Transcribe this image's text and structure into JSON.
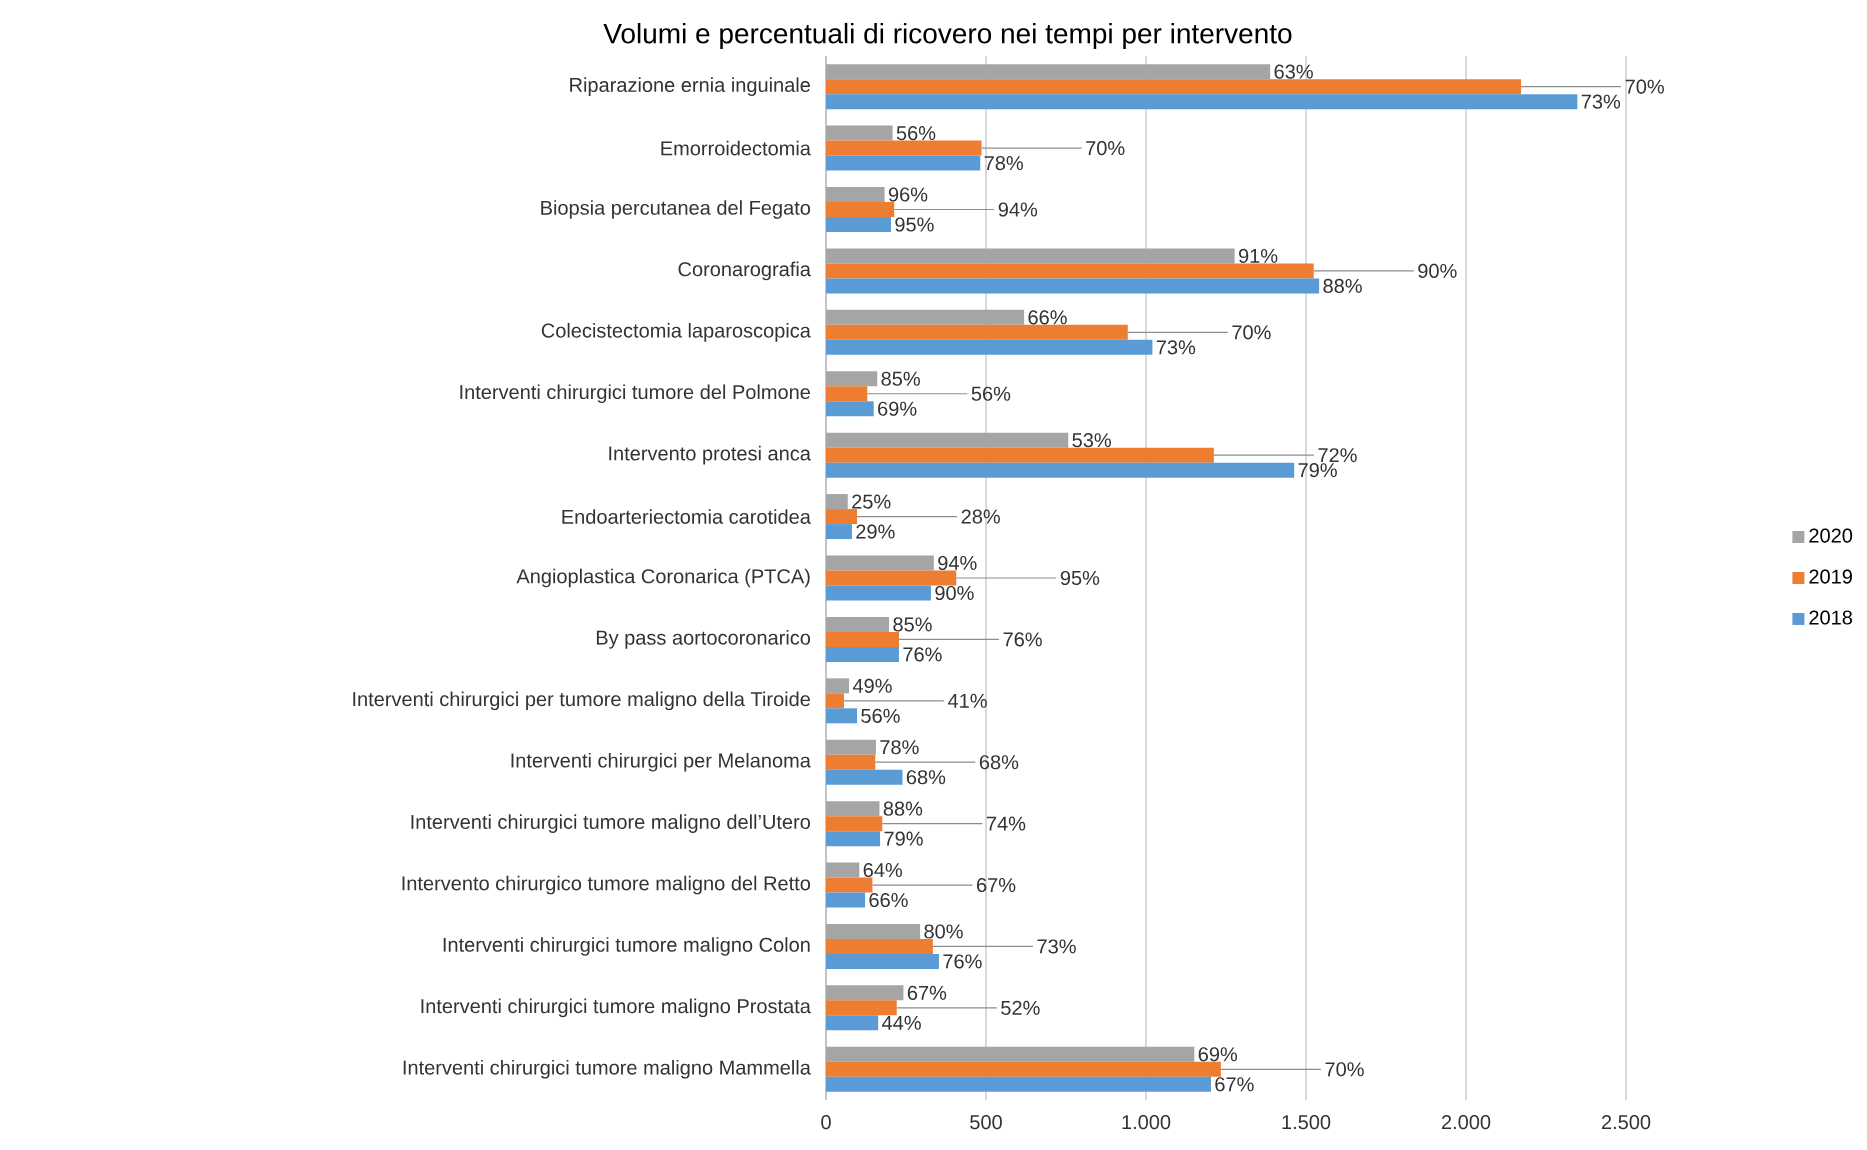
{
  "chart_data": {
    "type": "bar",
    "orientation": "horizontal",
    "title": "Volumi e percentuali di ricovero nei tempi per intervento",
    "categories": [
      "Riparazione ernia inguinale",
      "Emorroidectomia",
      "Biopsia percutanea del Fegato",
      "Coronarografia",
      "Colecistectomia laparoscopica",
      "Interventi chirurgici tumore del Polmone",
      "Intervento protesi anca",
      "Endoarteriectomia carotidea",
      "Angioplastica Coronarica (PTCA)",
      "By pass aortocoronarico",
      "Interventi chirurgici per tumore maligno della Tiroide",
      "Interventi chirurgici per Melanoma",
      "Interventi chirurgici tumore maligno dell’Utero",
      "Intervento chirurgico tumore maligno del Retto",
      "Interventi chirurgici tumore maligno Colon",
      "Interventi chirurgici tumore maligno Prostata",
      "Interventi chirurgici tumore maligno Mammella"
    ],
    "series": [
      {
        "name": "2020",
        "color": "#a5a5a5",
        "values": [
          1388,
          208,
          183,
          1277,
          619,
          160,
          757,
          68,
          337,
          197,
          72,
          156,
          167,
          104,
          294,
          242,
          1151
        ]
      },
      {
        "name": "2019",
        "color": "#ed7d31",
        "values": [
          2172,
          486,
          213,
          1524,
          943,
          129,
          1212,
          97,
          407,
          228,
          56,
          154,
          176,
          145,
          334,
          221,
          1234
        ]
      },
      {
        "name": "2018",
        "color": "#5b9bd5",
        "values": [
          2348,
          482,
          203,
          1541,
          1020,
          149,
          1463,
          81,
          328,
          228,
          97,
          239,
          169,
          122,
          353,
          163,
          1203
        ]
      }
    ],
    "annotations": [
      "63%",
      "56%",
      "96%",
      "91%",
      "66%",
      "85%",
      "53%",
      "25%",
      "94%",
      "85%",
      "49%",
      "78%",
      "88%",
      "64%",
      "80%",
      "67%",
      "69%",
      {
        "text": "70%",
        "x": 2172,
        "y": "Riparazione ernia inguinale"
      },
      {
        "text": "70%",
        "x": 486,
        "y": "Emorroidectomia"
      },
      {
        "text": "94%",
        "x": 213,
        "y": "Biopsia percutanea del Fegato"
      },
      {
        "text": "90%",
        "x": 1524,
        "y": "Coronarografia"
      },
      {
        "text": "70%",
        "x": 943,
        "y": "Colecistectomia laparoscopica"
      },
      {
        "text": "56%",
        "x": 129,
        "y": "Interventi chirurgici tumore del Polmone"
      },
      {
        "text": "72%",
        "x": 1212,
        "y": "Intervento protesi anca"
      },
      {
        "text": "28%",
        "x": 97,
        "y": "Endoarteriectomia carotidea"
      },
      {
        "text": "95%",
        "x": 407,
        "y": "Angioplastica Coronarica (PTCA)"
      },
      {
        "text": "76%",
        "x": 228,
        "y": "By pass aortocoronarico"
      },
      {
        "text": "41%",
        "x": 56,
        "y": "Interventi chirurgici per tumore maligno della Tiroide"
      },
      {
        "text": "68%",
        "x": 154,
        "y": "Interventi chirurgici per Melanoma"
      },
      {
        "text": "74%",
        "x": 176,
        "y": "Interventi chirurgici tumore maligno dell’Utero"
      },
      {
        "text": "67%",
        "x": 145,
        "y": "Intervento chirurgico tumore maligno del Retto"
      },
      {
        "text": "73%",
        "x": 334,
        "y": "Interventi chirurgici tumore maligno Colon"
      },
      {
        "text": "52%",
        "x": 221,
        "y": "Interventi chirurgici tumore maligno Prostata"
      },
      {
        "text": "70%",
        "x": 1234,
        "y": "Interventi chirurgici tumore maligno Mammella"
      },
      "73%",
      "78%",
      "95%",
      "88%",
      "73%",
      "69%",
      "79%",
      "29%",
      "90%",
      "76%",
      "56%",
      "68%",
      "79%",
      "66%",
      "76%",
      "44%",
      "67%"
    ],
    "xlim": [
      0,
      2500
    ],
    "xticks": [
      0,
      500,
      {
        "value": 1000,
        "label": "1.000"
      },
      {
        "value": 1500,
        "label": "1.500"
      },
      {
        "value": 2000,
        "label": "2.000"
      },
      {
        "value": 2500,
        "label": "2.500"
      }
    ],
    "grid": "x",
    "legend": "right"
  }
}
